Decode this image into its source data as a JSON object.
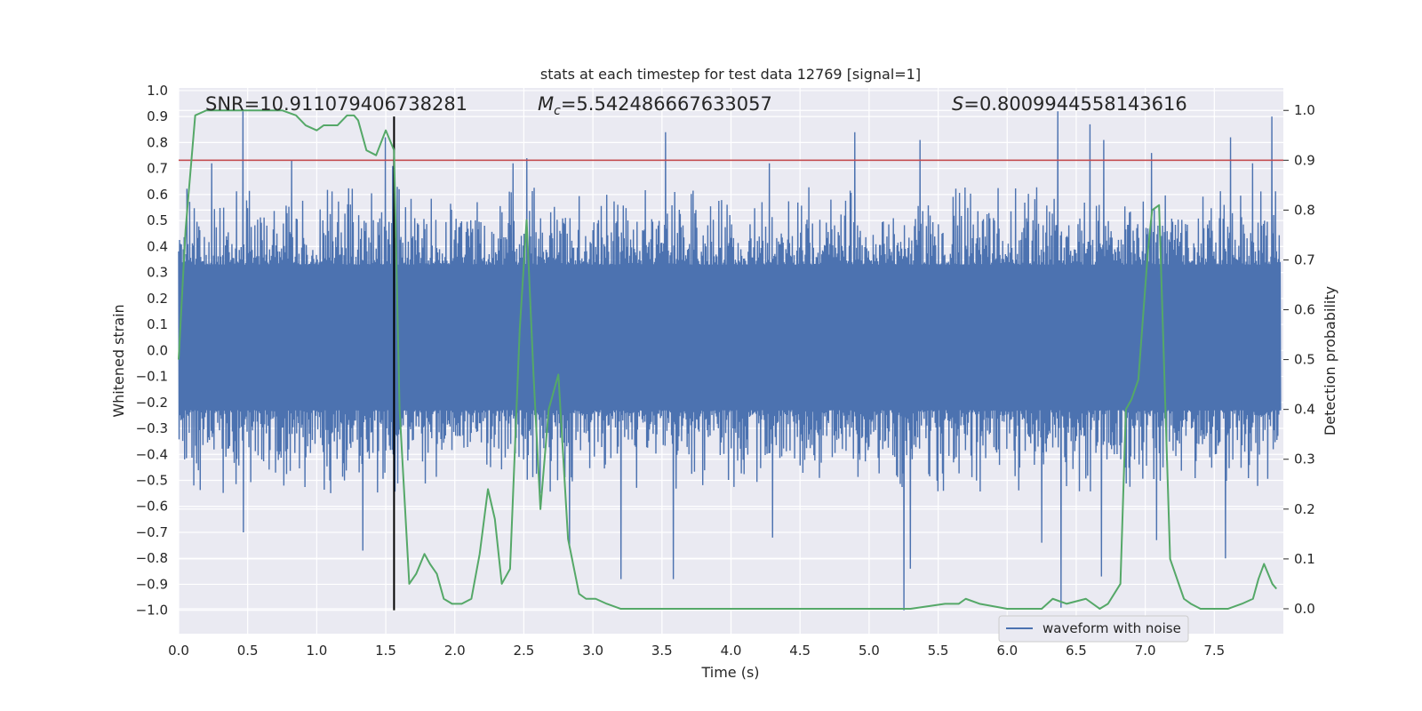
{
  "chart_data": {
    "type": "line",
    "title": "stats at each timestep for test data 12769 [signal=1]",
    "xlabel": "Time (s)",
    "ylabel_left": "Whitened strain",
    "ylabel_right": "Detection probability",
    "xlim": [
      0.0,
      8.0
    ],
    "ylim_left": [
      -1.09,
      1.01
    ],
    "ylim_right": [
      -0.05,
      1.045
    ],
    "xticks": [
      "0.0",
      "0.5",
      "1.0",
      "1.5",
      "2.0",
      "2.5",
      "3.0",
      "3.5",
      "4.0",
      "4.5",
      "5.0",
      "5.5",
      "6.0",
      "6.5",
      "7.0",
      "7.5"
    ],
    "xtick_values": [
      0.0,
      0.5,
      1.0,
      1.5,
      2.0,
      2.5,
      3.0,
      3.5,
      4.0,
      4.5,
      5.0,
      5.5,
      6.0,
      6.5,
      7.0,
      7.5
    ],
    "yticks_left": [
      "1.0",
      "0.9",
      "0.8",
      "0.7",
      "0.6",
      "0.5",
      "0.4",
      "0.3",
      "0.2",
      "0.1",
      "0.0",
      "−0.1",
      "−0.2",
      "−0.3",
      "−0.4",
      "−0.5",
      "−0.6",
      "−0.7",
      "−0.8",
      "−0.9",
      "−1.0"
    ],
    "ytick_values_left": [
      1.0,
      0.9,
      0.8,
      0.7,
      0.6,
      0.5,
      0.4,
      0.3,
      0.2,
      0.1,
      0.0,
      -0.1,
      -0.2,
      -0.3,
      -0.4,
      -0.5,
      -0.6,
      -0.7,
      -0.8,
      -0.9,
      -1.0
    ],
    "yticks_right": [
      "1.0",
      "0.9",
      "0.8",
      "0.7",
      "0.6",
      "0.5",
      "0.4",
      "0.3",
      "0.2",
      "0.1",
      "0.0"
    ],
    "ytick_values_right": [
      1.0,
      0.9,
      0.8,
      0.7,
      0.6,
      0.5,
      0.4,
      0.3,
      0.2,
      0.1,
      0.0
    ],
    "grid": true,
    "legend": {
      "placement": "lower-right",
      "entries": [
        "waveform with noise"
      ]
    },
    "annotations": {
      "snr": "SNR=10.911079406738281",
      "mc_symbol": "M",
      "mc_sub": "c",
      "mc_value": "=5.542486667633057",
      "s_symbol": "S",
      "s_value": "=0.8009944558143616"
    },
    "threshold_line": {
      "y_right": 0.9,
      "color": "#c44e52"
    },
    "vertical_marker": {
      "x": 1.56,
      "y_left_range": [
        -1.0,
        0.9
      ],
      "color": "#000000"
    },
    "waveform": {
      "name": "waveform with noise",
      "color": "#4c72b0",
      "x_range": [
        0.0,
        7.98
      ],
      "envelope": [
        0.33,
        -0.23
      ],
      "peaks": [
        [
          0.47,
          0.92
        ],
        [
          0.24,
          0.72
        ],
        [
          0.82,
          0.73
        ],
        [
          1.5,
          0.82
        ],
        [
          1.55,
          0.71
        ],
        [
          2.42,
          0.72
        ],
        [
          2.52,
          0.74
        ],
        [
          3.53,
          0.84
        ],
        [
          4.28,
          0.72
        ],
        [
          4.9,
          0.84
        ],
        [
          5.37,
          0.81
        ],
        [
          6.37,
          0.92
        ],
        [
          6.6,
          0.87
        ],
        [
          6.7,
          0.81
        ],
        [
          7.62,
          0.82
        ],
        [
          7.78,
          0.72
        ],
        [
          7.92,
          0.9
        ],
        [
          7.05,
          0.76
        ]
      ],
      "troughs": [
        [
          1.33,
          -0.77
        ],
        [
          2.83,
          -0.76
        ],
        [
          3.58,
          -0.88
        ],
        [
          5.25,
          -1.0
        ],
        [
          5.3,
          -0.84
        ],
        [
          6.39,
          -0.99
        ],
        [
          6.68,
          -0.87
        ],
        [
          6.25,
          -0.74
        ],
        [
          7.58,
          -0.8
        ],
        [
          3.2,
          -0.88
        ],
        [
          0.47,
          -0.7
        ],
        [
          4.3,
          -0.72
        ],
        [
          7.08,
          -0.73
        ]
      ]
    },
    "probability": {
      "color": "#55a868",
      "x": [
        0.0,
        0.05,
        0.12,
        0.2,
        0.3,
        0.45,
        0.6,
        0.75,
        0.85,
        0.92,
        1.0,
        1.05,
        1.15,
        1.22,
        1.27,
        1.3,
        1.36,
        1.43,
        1.5,
        1.56,
        1.6,
        1.67,
        1.72,
        1.78,
        1.82,
        1.87,
        1.92,
        1.98,
        2.05,
        2.12,
        2.18,
        2.24,
        2.29,
        2.34,
        2.4,
        2.47,
        2.52,
        2.57,
        2.62,
        2.68,
        2.75,
        2.82,
        2.9,
        2.95,
        3.02,
        3.1,
        3.2,
        3.3,
        3.5,
        3.7,
        4.0,
        4.3,
        4.55,
        4.6,
        4.8,
        5.0,
        5.3,
        5.55,
        5.65,
        5.7,
        5.8,
        6.0,
        6.25,
        6.33,
        6.43,
        6.57,
        6.67,
        6.73,
        6.82,
        6.86,
        6.9,
        6.95,
        7.02,
        7.05,
        7.1,
        7.18,
        7.28,
        7.33,
        7.4,
        7.6,
        7.7,
        7.78,
        7.82,
        7.86,
        7.92,
        7.95
      ],
      "y": [
        0.5,
        0.76,
        0.99,
        1.0,
        1.0,
        1.0,
        1.0,
        1.0,
        0.99,
        0.97,
        0.96,
        0.97,
        0.97,
        0.99,
        0.99,
        0.98,
        0.92,
        0.91,
        0.96,
        0.92,
        0.4,
        0.05,
        0.07,
        0.11,
        0.09,
        0.07,
        0.02,
        0.01,
        0.01,
        0.02,
        0.11,
        0.24,
        0.18,
        0.05,
        0.08,
        0.56,
        0.78,
        0.47,
        0.2,
        0.4,
        0.47,
        0.14,
        0.03,
        0.02,
        0.02,
        0.01,
        0.0,
        0.0,
        0.0,
        0.0,
        0.0,
        0.0,
        0.0,
        0.0,
        0.0,
        0.0,
        0.0,
        0.01,
        0.01,
        0.02,
        0.01,
        0.0,
        0.0,
        0.02,
        0.01,
        0.02,
        0.0,
        0.01,
        0.05,
        0.4,
        0.42,
        0.46,
        0.72,
        0.8,
        0.81,
        0.1,
        0.02,
        0.01,
        0.0,
        0.0,
        0.01,
        0.02,
        0.06,
        0.09,
        0.05,
        0.04
      ]
    }
  }
}
